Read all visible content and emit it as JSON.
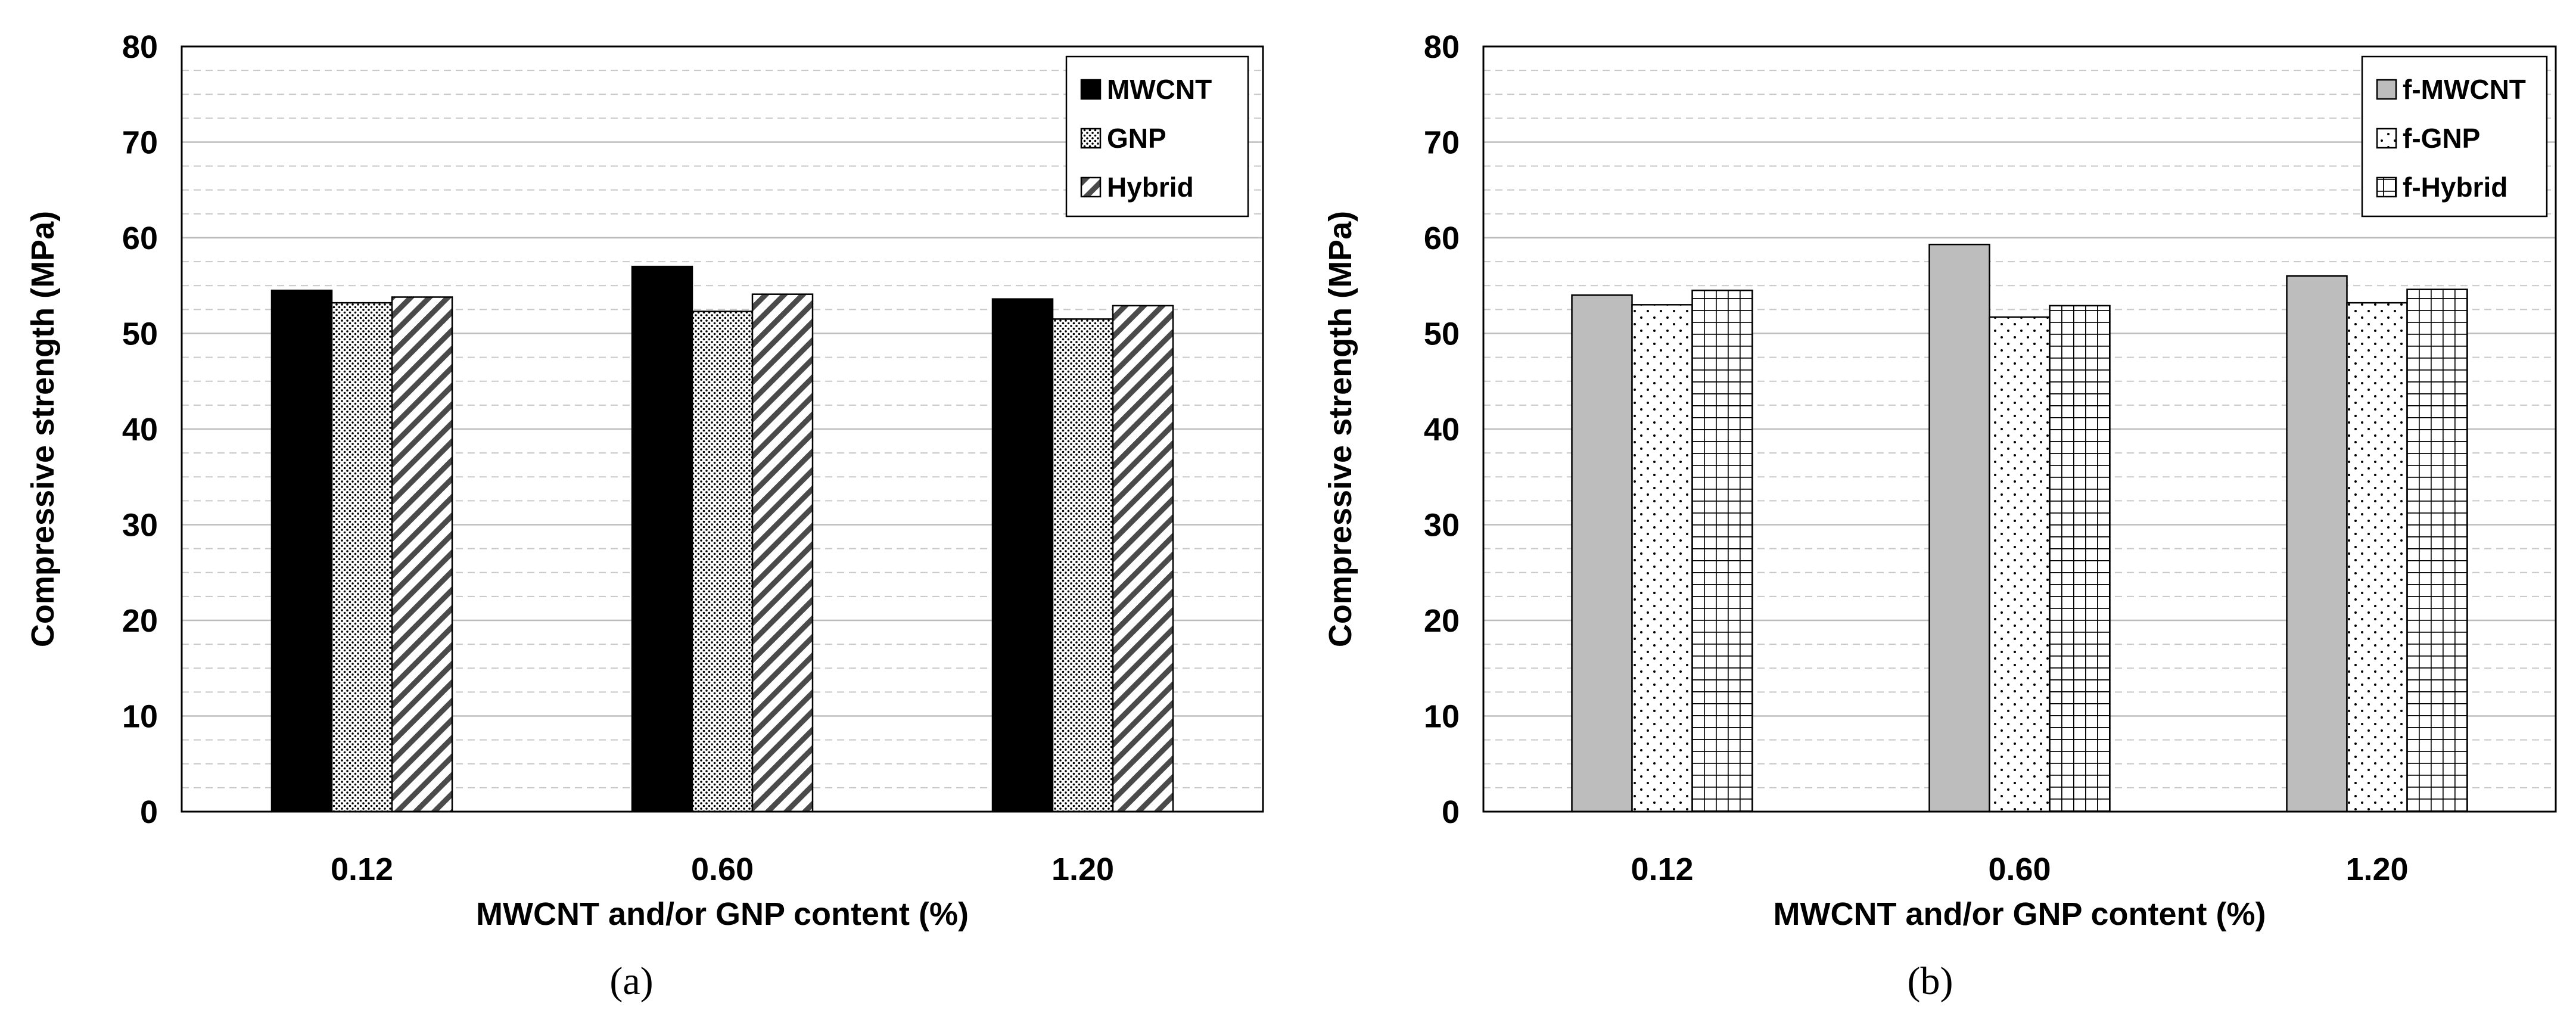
{
  "chart_data": [
    {
      "type": "bar",
      "panel": "a",
      "caption": "(a)",
      "ylabel": "Compressive strength (MPa)",
      "xlabel": "MWCNT and/or GNP content (%)",
      "categories": [
        "0.12",
        "0.60",
        "1.20"
      ],
      "ylim": [
        0,
        80
      ],
      "yticks": [
        0,
        10,
        20,
        30,
        40,
        50,
        60,
        70,
        80
      ],
      "minor_grid_step": 2.5,
      "legend_position": "top-right",
      "series": [
        {
          "name": "MWCNT",
          "pattern": "solid-black",
          "values": [
            54.5,
            57.0,
            53.6
          ]
        },
        {
          "name": "GNP",
          "pattern": "dense-dots",
          "values": [
            53.2,
            52.3,
            51.5
          ]
        },
        {
          "name": "Hybrid",
          "pattern": "diagonal-stripes",
          "values": [
            53.8,
            54.1,
            52.9
          ]
        }
      ]
    },
    {
      "type": "bar",
      "panel": "b",
      "caption": "(b)",
      "ylabel": "Compressive strength (MPa)",
      "xlabel": "MWCNT and/or GNP content (%)",
      "categories": [
        "0.12",
        "0.60",
        "1.20"
      ],
      "ylim": [
        0,
        80
      ],
      "yticks": [
        0,
        10,
        20,
        30,
        40,
        50,
        60,
        70,
        80
      ],
      "minor_grid_step": 2.5,
      "legend_position": "top-right",
      "series": [
        {
          "name": "f-MWCNT",
          "pattern": "solid-gray",
          "values": [
            54.0,
            59.3,
            56.0
          ]
        },
        {
          "name": "f-GNP",
          "pattern": "sparse-dots",
          "values": [
            53.0,
            51.7,
            53.2
          ]
        },
        {
          "name": "f-Hybrid",
          "pattern": "grid",
          "values": [
            54.5,
            52.9,
            54.6
          ]
        }
      ]
    }
  ]
}
